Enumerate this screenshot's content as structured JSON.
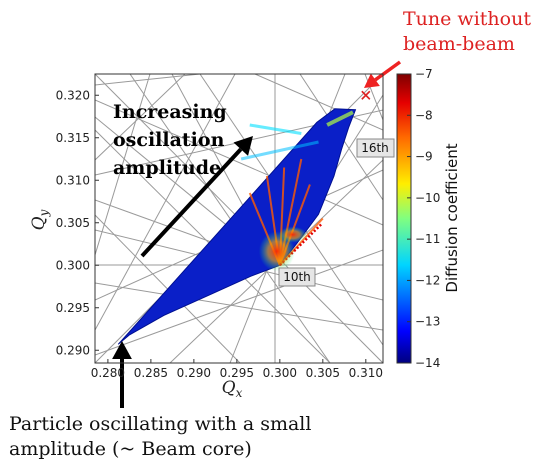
{
  "chart_data": {
    "type": "heatmap",
    "xlabel": "Q_x",
    "ylabel": "Q_y",
    "xlabel_main": "Q",
    "xlabel_sub": "x",
    "ylabel_main": "Q",
    "ylabel_sub": "y",
    "xlim": [
      0.2785,
      0.312
    ],
    "ylim": [
      0.2885,
      0.3225
    ],
    "x_ticks": [
      0.28,
      0.285,
      0.29,
      0.295,
      0.3,
      0.305,
      0.31
    ],
    "x_tick_labels": [
      "0.280",
      "0.285",
      "0.290",
      "0.295",
      "0.300",
      "0.305",
      "0.310"
    ],
    "y_ticks": [
      0.29,
      0.295,
      0.3,
      0.305,
      0.31,
      0.315,
      0.32
    ],
    "y_tick_labels": [
      "0.290",
      "0.295",
      "0.300",
      "0.305",
      "0.310",
      "0.315",
      "0.320"
    ],
    "colorbar": {
      "label": "Diffusion coefficient",
      "range": [
        -14,
        -7
      ],
      "ticks": [
        -14,
        -13,
        -12,
        -11,
        -10,
        -9,
        -8,
        -7
      ],
      "tick_labels": [
        "−14",
        "−13",
        "−12",
        "−11",
        "−10",
        "−9",
        "−8",
        "−7"
      ],
      "colormap": "jet"
    },
    "footprint": {
      "vertices": [
        [
          0.2812,
          0.2907
        ],
        [
          0.3043,
          0.3168
        ],
        [
          0.3064,
          0.3184
        ],
        [
          0.3088,
          0.3183
        ],
        [
          0.308,
          0.3162
        ],
        [
          0.3072,
          0.3137
        ],
        [
          0.3063,
          0.3105
        ],
        [
          0.3045,
          0.306
        ],
        [
          0.302,
          0.3026
        ],
        [
          0.3,
          0.3
        ],
        [
          0.2966,
          0.2987
        ],
        [
          0.292,
          0.2966
        ],
        [
          0.2865,
          0.2941
        ],
        [
          0.2825,
          0.2918
        ]
      ]
    },
    "resonance_lines": [
      {
        "label": "10th",
        "x": 0.3,
        "y": 0.3
      },
      {
        "label": "16th",
        "x": 0.3125,
        "y": 0.3125
      }
    ],
    "points": [
      {
        "name": "Tune without beam-beam",
        "x": 0.31,
        "y": 0.32,
        "marker": "x",
        "color": "#dd2222"
      }
    ],
    "annotations": [
      {
        "text_lines": [
          "Increasing",
          "oscillation",
          "amplitude"
        ]
      },
      {
        "text_lines": [
          "Tune without",
          "beam-beam"
        ]
      },
      {
        "text_lines": [
          "Particle oscillating with a small",
          "amplitude (~ Beam core)"
        ]
      }
    ]
  },
  "colors": {
    "resonance_line": "#9a9a9a",
    "tune_marker": "#dd2222",
    "tune_arrow": "#ee2222",
    "annotation_arrow": "#000000"
  }
}
